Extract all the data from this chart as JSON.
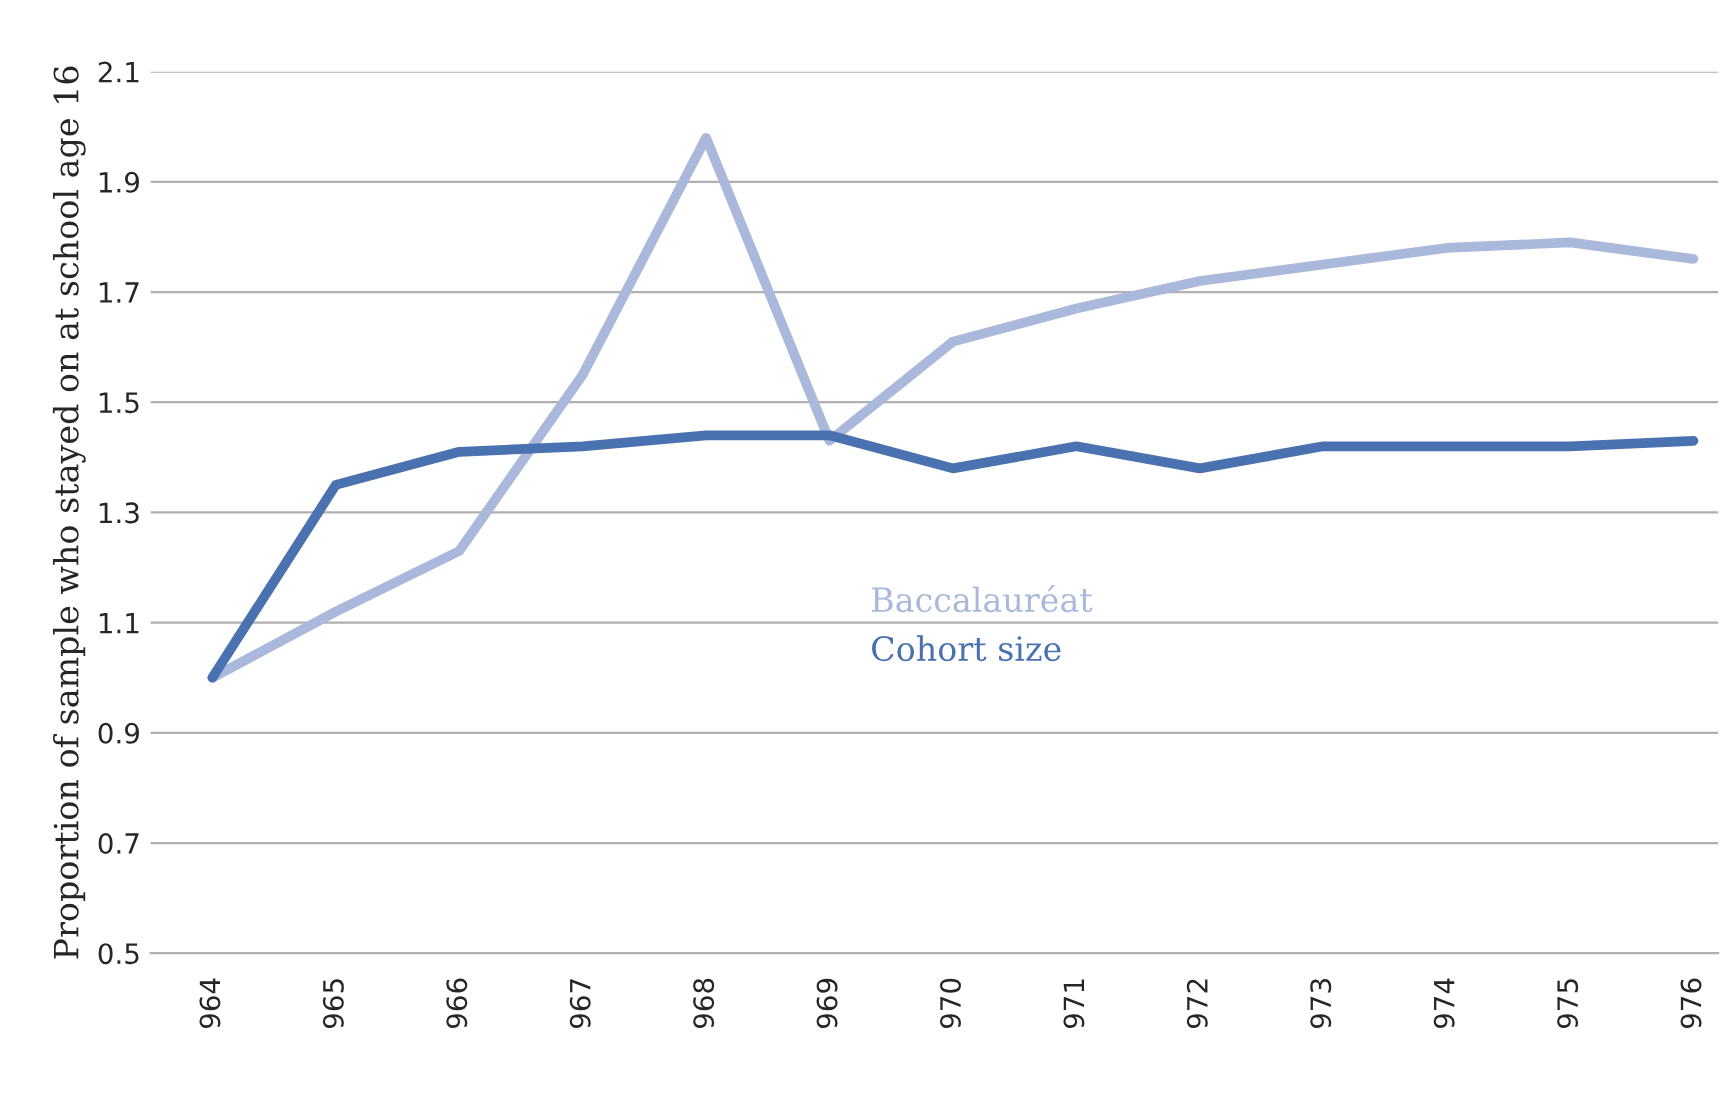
{
  "chart_data": {
    "type": "line",
    "ylabel": "Proportion of sample who stayed on at school age 16",
    "categories": [
      "964",
      "965",
      "966",
      "967",
      "968",
      "969",
      "970",
      "971",
      "972",
      "973",
      "974",
      "975",
      "976"
    ],
    "series": [
      {
        "name": "Baccalauréat",
        "color": "#a9b8db",
        "values": [
          1.0,
          1.12,
          1.23,
          1.55,
          1.98,
          1.43,
          1.61,
          1.67,
          1.72,
          1.75,
          1.78,
          1.79,
          1.76
        ]
      },
      {
        "name": "Cohort size",
        "color": "#4a72b0",
        "values": [
          1.0,
          1.35,
          1.41,
          1.42,
          1.44,
          1.44,
          1.38,
          1.42,
          1.38,
          1.42,
          1.42,
          1.42,
          1.43
        ]
      }
    ],
    "ylim": [
      0.5,
      2.1
    ],
    "yticks": [
      0.5,
      0.7,
      0.9,
      1.1,
      1.3,
      1.5,
      1.7,
      1.9,
      2.1
    ],
    "grid": "y",
    "legend": "center",
    "marker": "none",
    "line_style": "solid"
  }
}
